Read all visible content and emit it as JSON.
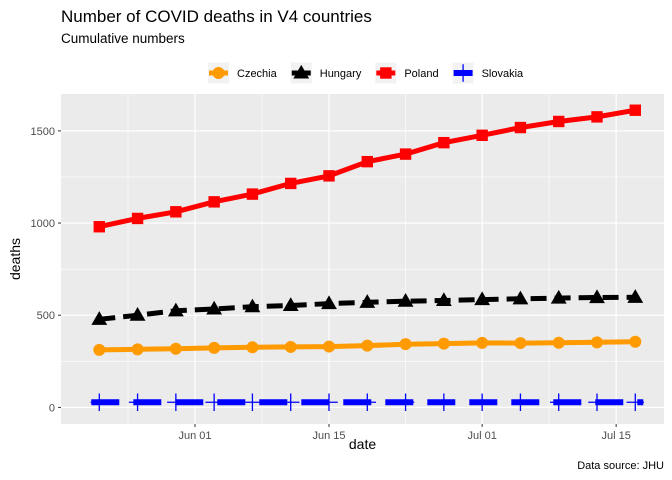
{
  "chart_data": {
    "type": "line",
    "title": "Number of COVID deaths in V4 countries",
    "subtitle": "Cumulative numbers",
    "xlabel": "date",
    "ylabel": "deaths",
    "caption": "Data source: JHU",
    "x_ticks": [
      {
        "date": "2020-06-01",
        "label": "Jun 01"
      },
      {
        "date": "2020-06-15",
        "label": "Jun 15"
      },
      {
        "date": "2020-07-01",
        "label": "Jul 01"
      },
      {
        "date": "2020-07-15",
        "label": "Jul 15"
      }
    ],
    "y_ticks": [
      0,
      500,
      1000,
      1500
    ],
    "xlim": [
      "2020-05-18",
      "2020-07-20"
    ],
    "ylim": [
      -90,
      1700
    ],
    "grid": true,
    "legend_position": "top",
    "x": [
      "2020-05-22",
      "2020-05-26",
      "2020-05-30",
      "2020-06-03",
      "2020-06-07",
      "2020-06-11",
      "2020-06-15",
      "2020-06-19",
      "2020-06-23",
      "2020-06-27",
      "2020-07-01",
      "2020-07-05",
      "2020-07-09",
      "2020-07-13",
      "2020-07-17"
    ],
    "series": [
      {
        "name": "Czechia",
        "color": "#ff9a00",
        "marker": "circle",
        "linestyle": "solid",
        "values": [
          312,
          315,
          318,
          323,
          326,
          328,
          330,
          335,
          343,
          346,
          350,
          349,
          351,
          353,
          356
        ]
      },
      {
        "name": "Hungary",
        "color": "#000000",
        "marker": "triangle",
        "linestyle": "dashed",
        "values": [
          478,
          500,
          524,
          534,
          546,
          553,
          563,
          570,
          576,
          580,
          585,
          589,
          593,
          596,
          597
        ]
      },
      {
        "name": "Poland",
        "color": "#ff0000",
        "marker": "square",
        "linestyle": "solid",
        "values": [
          980,
          1025,
          1061,
          1115,
          1157,
          1215,
          1256,
          1333,
          1374,
          1436,
          1476,
          1518,
          1551,
          1576,
          1612
        ]
      },
      {
        "name": "Slovakia",
        "color": "#0000ff",
        "marker": "cross",
        "linestyle": "longdash",
        "values": [
          28,
          28,
          28,
          28,
          28,
          28,
          28,
          28,
          28,
          28,
          28,
          28,
          28,
          28,
          28
        ]
      }
    ]
  }
}
